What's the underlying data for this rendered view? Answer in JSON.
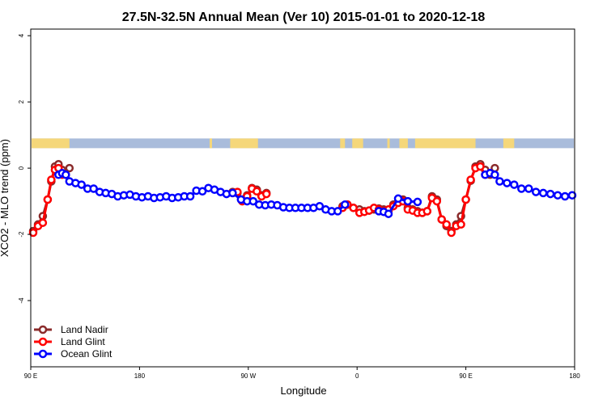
{
  "chart_data": {
    "type": "line",
    "title": "27.5N-32.5N Annual Mean (Ver 10)   2015-01-01 to 2020-12-18",
    "xlabel": "Longitude",
    "ylabel": "XCO2 - MLO trend (ppm)",
    "xlim": [
      90,
      540
    ],
    "ylim": [
      -6,
      4.2
    ],
    "x_ticks": [
      {
        "value": 90,
        "label": "90 E"
      },
      {
        "value": 180,
        "label": "180"
      },
      {
        "value": 270,
        "label": "90 W"
      },
      {
        "value": 360,
        "label": "0"
      },
      {
        "value": 450,
        "label": "90 E"
      },
      {
        "value": 540,
        "label": "180"
      }
    ],
    "y_ticks": [
      {
        "value": -4,
        "label": "-4"
      },
      {
        "value": -2,
        "label": "-2"
      },
      {
        "value": 0,
        "label": "0"
      },
      {
        "value": 2,
        "label": "2"
      },
      {
        "value": 4,
        "label": "4"
      }
    ],
    "grid": false,
    "legend_position": "bottom-left",
    "land_ocean_strip": {
      "y_center": 0.75,
      "land_color": "#f5d77a",
      "ocean_color": "#a9bcdb",
      "land_ranges": [
        [
          90,
          122
        ],
        [
          238,
          240
        ],
        [
          255,
          278
        ],
        [
          346,
          350
        ],
        [
          356,
          365
        ],
        [
          385,
          387
        ],
        [
          395,
          402
        ],
        [
          408,
          458
        ],
        [
          481,
          490
        ]
      ]
    },
    "series": [
      {
        "name": "Land Nadir",
        "color": "#8b2b2b",
        "x": [
          92,
          96,
          100,
          104,
          107,
          110,
          113,
          116,
          119,
          122,
          257,
          261,
          265,
          269,
          273,
          277,
          281,
          285,
          348,
          352,
          357,
          362,
          366,
          370,
          374,
          378,
          382,
          386,
          390,
          394,
          398,
          402,
          406,
          410,
          414,
          418,
          422,
          426,
          430,
          434,
          438,
          442,
          446,
          450,
          454,
          458,
          462,
          466,
          470,
          474
        ],
        "y": [
          -1.9,
          -1.7,
          -1.45,
          -0.95,
          -0.4,
          0.05,
          0.12,
          -0.05,
          -0.2,
          0.0,
          -0.72,
          -0.75,
          -0.95,
          -0.82,
          -0.6,
          -0.65,
          -0.82,
          -0.75,
          -1.15,
          -1.1,
          -1.2,
          -1.25,
          -1.3,
          -1.28,
          -1.25,
          -1.22,
          -1.25,
          -1.3,
          -1.1,
          -1.0,
          -0.95,
          -1.2,
          -1.25,
          -1.3,
          -1.35,
          -1.3,
          -0.85,
          -0.95,
          -1.55,
          -1.75,
          -1.9,
          -1.7,
          -1.45,
          -0.95,
          -0.38,
          0.05,
          0.12,
          -0.05,
          -0.2,
          0.0
        ]
      },
      {
        "name": "Land Glint",
        "color": "#ff0000",
        "x": [
          92,
          96,
          100,
          104,
          107,
          110,
          113,
          116,
          257,
          261,
          265,
          269,
          273,
          277,
          281,
          285,
          348,
          352,
          357,
          362,
          366,
          370,
          374,
          378,
          382,
          386,
          390,
          394,
          398,
          402,
          406,
          410,
          414,
          418,
          422,
          426,
          430,
          434,
          438,
          442,
          446,
          450,
          454,
          458,
          462,
          466
        ],
        "y": [
          -1.95,
          -1.75,
          -1.65,
          -0.95,
          -0.35,
          -0.05,
          0.0,
          -0.2,
          -0.75,
          -0.72,
          -1.0,
          -0.85,
          -0.62,
          -0.7,
          -0.85,
          -0.78,
          -1.2,
          -1.1,
          -1.2,
          -1.35,
          -1.32,
          -1.28,
          -1.2,
          -1.25,
          -1.3,
          -1.25,
          -1.15,
          -1.05,
          -1.0,
          -1.25,
          -1.28,
          -1.35,
          -1.35,
          -1.3,
          -0.9,
          -1.0,
          -1.55,
          -1.7,
          -1.95,
          -1.75,
          -1.7,
          -0.95,
          -0.35,
          0.0,
          0.05,
          -0.2
        ]
      },
      {
        "name": "Ocean Glint",
        "color": "#0000ff",
        "x": [
          113,
          116,
          119,
          122,
          127,
          132,
          137,
          142,
          147,
          152,
          157,
          162,
          167,
          172,
          177,
          182,
          187,
          192,
          197,
          202,
          207,
          212,
          217,
          222,
          227,
          232,
          237,
          242,
          247,
          252,
          257,
          264,
          269,
          274,
          279,
          284,
          289,
          294,
          299,
          304,
          309,
          314,
          319,
          324,
          329,
          334,
          339,
          344,
          350,
          378,
          382,
          386,
          394,
          402,
          410,
          466,
          470,
          474,
          478,
          484,
          490,
          496,
          502,
          508,
          514,
          520,
          526,
          532,
          538
        ],
        "y": [
          -0.2,
          -0.15,
          -0.2,
          -0.4,
          -0.45,
          -0.5,
          -0.62,
          -0.62,
          -0.72,
          -0.75,
          -0.78,
          -0.85,
          -0.82,
          -0.8,
          -0.85,
          -0.88,
          -0.85,
          -0.9,
          -0.88,
          -0.85,
          -0.9,
          -0.88,
          -0.85,
          -0.85,
          -0.68,
          -0.7,
          -0.6,
          -0.65,
          -0.72,
          -0.78,
          -0.75,
          -0.95,
          -1.0,
          -1.0,
          -1.1,
          -1.12,
          -1.1,
          -1.12,
          -1.18,
          -1.2,
          -1.2,
          -1.2,
          -1.2,
          -1.2,
          -1.15,
          -1.25,
          -1.3,
          -1.3,
          -1.1,
          -1.3,
          -1.32,
          -1.38,
          -0.92,
          -1.0,
          -1.02,
          -0.2,
          -0.15,
          -0.2,
          -0.4,
          -0.45,
          -0.5,
          -0.62,
          -0.62,
          -0.72,
          -0.75,
          -0.78,
          -0.82,
          -0.85,
          -0.82
        ]
      }
    ]
  }
}
